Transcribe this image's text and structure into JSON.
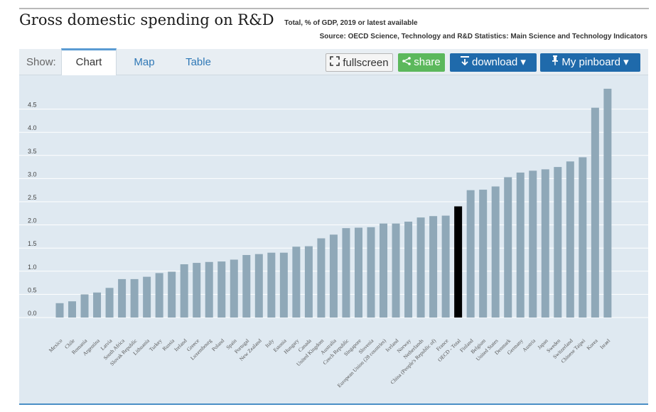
{
  "header": {
    "title": "Gross domestic spending on R&D",
    "subtitle": "Total, % of GDP, 2019 or latest available",
    "source": "Source: OECD Science, Technology and R&D Statistics: Main Science and Technology Indicators"
  },
  "toolbar": {
    "show_label": "Show:",
    "tabs": [
      "Chart",
      "Map",
      "Table"
    ],
    "fullscreen_label": "fullscreen",
    "share_label": "share",
    "download_label": "download ▾",
    "pinboard_label": "My pinboard ▾"
  },
  "colors": {
    "bar": "#8fa8b8",
    "highlight": "#000000",
    "panel": "#dfe9f1",
    "share": "#5cb85c",
    "primary": "#1f6aab"
  },
  "chart_data": {
    "type": "bar",
    "title": "Gross domestic spending on R&D",
    "subtitle": "Total, % of GDP, 2019 or latest available",
    "ylim": [
      0,
      5
    ],
    "yticks": [
      "0.0",
      "0.5",
      "1.0",
      "1.5",
      "2.0",
      "2.5",
      "3.0",
      "3.5",
      "4.0",
      "4.5"
    ],
    "grid": true,
    "highlight": "OECD - Total",
    "categories": [
      "Mexico",
      "Chile",
      "Romania",
      "Argentina",
      "Latvia",
      "South Africa",
      "Slovak Republic",
      "Lithuania",
      "Turkey",
      "Russia",
      "Ireland",
      "Greece",
      "Luxembourg",
      "Poland",
      "Spain",
      "Portugal",
      "New Zealand",
      "Italy",
      "Estonia",
      "Hungary",
      "Canada",
      "United Kingdom",
      "Australia",
      "Czech Republic",
      "Singapore",
      "Slovenia",
      "European Union (28 countries)",
      "Iceland",
      "Norway",
      "Netherlands",
      "China (People's Republic of)",
      "France",
      "OECD - Total",
      "Finland",
      "Belgium",
      "United States",
      "Denmark",
      "Germany",
      "Austria",
      "Japan",
      "Sweden",
      "Switzerland",
      "Chinese Taipei",
      "Korea",
      "Israel"
    ],
    "values": [
      0.31,
      0.35,
      0.5,
      0.54,
      0.64,
      0.83,
      0.83,
      0.88,
      0.96,
      0.99,
      1.15,
      1.18,
      1.2,
      1.21,
      1.25,
      1.35,
      1.37,
      1.4,
      1.4,
      1.53,
      1.54,
      1.71,
      1.79,
      1.93,
      1.94,
      1.95,
      2.03,
      2.03,
      2.07,
      2.16,
      2.19,
      2.2,
      2.4,
      2.75,
      2.76,
      2.83,
      3.03,
      3.13,
      3.17,
      3.2,
      3.25,
      3.37,
      3.46,
      4.53,
      4.94
    ]
  }
}
